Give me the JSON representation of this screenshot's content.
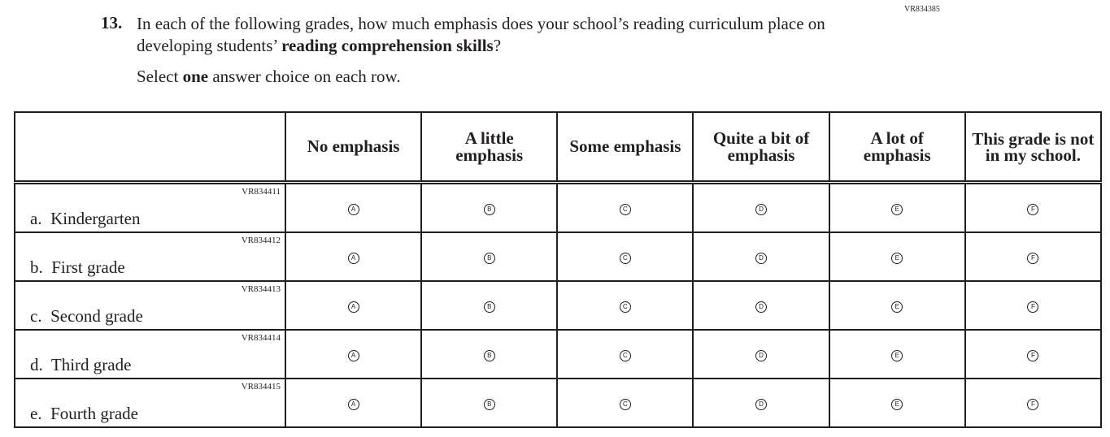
{
  "question": {
    "id": "VR834385",
    "number": "13.",
    "text_part1": "In each of the following grades, how much emphasis does your school’s reading curriculum place on developing students’ ",
    "text_bold": "reading comprehension skills",
    "text_part2": "?",
    "instruction_pre": "Select ",
    "instruction_bold": "one",
    "instruction_post": " answer choice on each row."
  },
  "columns": [
    "No emphasis",
    "A little emphasis",
    "Some emphasis",
    "Quite a bit of emphasis",
    "A lot of emphasis",
    "This grade is not in my school."
  ],
  "options": [
    "A",
    "B",
    "C",
    "D",
    "E",
    "F"
  ],
  "rows": [
    {
      "id": "VR834411",
      "label": "a.  Kindergarten"
    },
    {
      "id": "VR834412",
      "label": "b.  First grade"
    },
    {
      "id": "VR834413",
      "label": "c.  Second grade"
    },
    {
      "id": "VR834414",
      "label": "d.  Third grade"
    },
    {
      "id": "VR834415",
      "label": "e.  Fourth grade"
    }
  ]
}
